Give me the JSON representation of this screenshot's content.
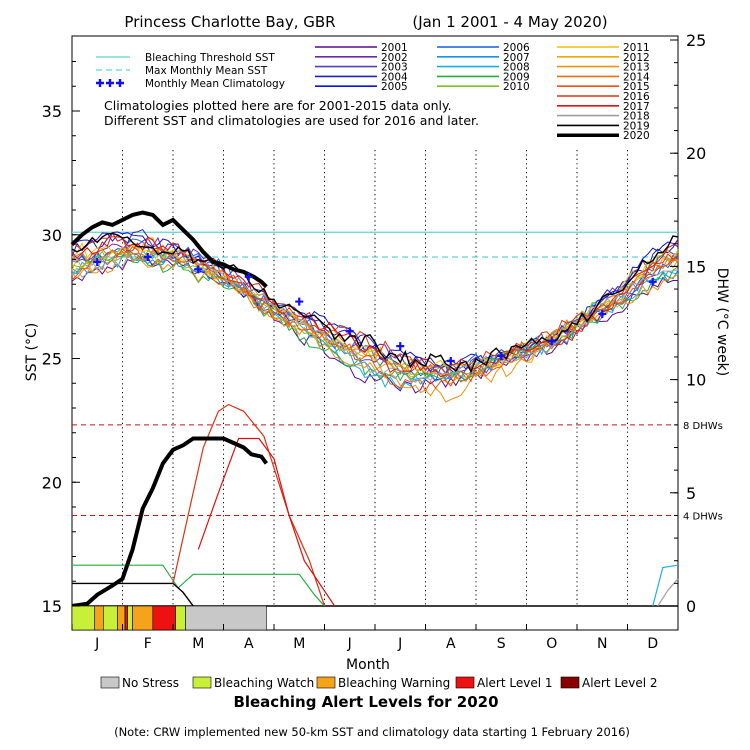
{
  "chart_data": {
    "type": "line",
    "title": "Princess Charlotte Bay, GBR",
    "title_range": "(Jan 1 2001 - 4 May 2020)",
    "xlabel": "Month",
    "ylabel": "SST (°C)",
    "ylabel_right": "DHW (°C week)",
    "categories": [
      "J",
      "F",
      "M",
      "A",
      "M",
      "J",
      "J",
      "A",
      "S",
      "O",
      "N",
      "D"
    ],
    "ylim": [
      14,
      39
    ],
    "yticks": [
      "15",
      "20",
      "25",
      "30",
      "35"
    ],
    "ylim_right": [
      0,
      25
    ],
    "yticks_right": [
      "0",
      "5",
      "10",
      "15",
      "20",
      "25"
    ],
    "grid": "dotted vertical month lines",
    "legend_placement": "top",
    "thresholds": {
      "bleaching_threshold_sst": 30.1,
      "max_monthly_mean_sst": 29.1,
      "dhw_4_label": "4 DHWs",
      "dhw_8_label": "8 DHWs"
    },
    "legend_lines": [
      {
        "name": "Bleaching Threshold SST",
        "color": "#5fd5d5",
        "style": "solid"
      },
      {
        "name": "Max Monthly Mean SST",
        "color": "#5fd5d5",
        "style": "dashed"
      },
      {
        "name": "Monthly Mean Climatology",
        "color": "#1010ff",
        "style": "plus"
      }
    ],
    "note_line1": "Climatologies plotted here are for 2001-2015 data only.",
    "note_line2": "Different SST and climatologies are used for 2016 and later.",
    "years": [
      {
        "name": "2001",
        "color": "#5a0a8a"
      },
      {
        "name": "2002",
        "color": "#6a2ab0"
      },
      {
        "name": "2003",
        "color": "#5540c0"
      },
      {
        "name": "2004",
        "color": "#2020c0"
      },
      {
        "name": "2005",
        "color": "#1010e0"
      },
      {
        "name": "2006",
        "color": "#1060e0"
      },
      {
        "name": "2007",
        "color": "#1890f0"
      },
      {
        "name": "2008",
        "color": "#18b0e0"
      },
      {
        "name": "2009",
        "color": "#20b040"
      },
      {
        "name": "2010",
        "color": "#80c020"
      },
      {
        "name": "2011",
        "color": "#f0c000"
      },
      {
        "name": "2012",
        "color": "#f0a800"
      },
      {
        "name": "2013",
        "color": "#f09010"
      },
      {
        "name": "2014",
        "color": "#f07010"
      },
      {
        "name": "2015",
        "color": "#f05010"
      },
      {
        "name": "2016",
        "color": "#e03010"
      },
      {
        "name": "2017",
        "color": "#e01010"
      },
      {
        "name": "2018",
        "color": "#a0a0a0"
      },
      {
        "name": "2019",
        "color": "#000000"
      },
      {
        "name": "2020",
        "color": "#000000"
      }
    ],
    "climatology": [
      {
        "x": 0.5,
        "y": 28.9
      },
      {
        "x": 1.5,
        "y": 29.1
      },
      {
        "x": 2.5,
        "y": 28.6
      },
      {
        "x": 3.5,
        "y": 28.3
      },
      {
        "x": 4.5,
        "y": 27.3
      },
      {
        "x": 5.5,
        "y": 26.1
      },
      {
        "x": 6.5,
        "y": 25.5
      },
      {
        "x": 7.5,
        "y": 24.9
      },
      {
        "x": 8.5,
        "y": 25.1
      },
      {
        "x": 9.5,
        "y": 25.7
      },
      {
        "x": 10.5,
        "y": 26.8
      },
      {
        "x": 11.5,
        "y": 28.1
      }
    ],
    "sst_2020": [
      {
        "x": 0.0,
        "y": 29.6
      },
      {
        "x": 0.2,
        "y": 30.0
      },
      {
        "x": 0.4,
        "y": 30.3
      },
      {
        "x": 0.6,
        "y": 30.5
      },
      {
        "x": 0.8,
        "y": 30.4
      },
      {
        "x": 1.0,
        "y": 30.6
      },
      {
        "x": 1.2,
        "y": 30.8
      },
      {
        "x": 1.4,
        "y": 30.9
      },
      {
        "x": 1.6,
        "y": 30.8
      },
      {
        "x": 1.8,
        "y": 30.4
      },
      {
        "x": 2.0,
        "y": 30.6
      },
      {
        "x": 2.2,
        "y": 30.2
      },
      {
        "x": 2.4,
        "y": 29.8
      },
      {
        "x": 2.6,
        "y": 29.3
      },
      {
        "x": 2.8,
        "y": 28.9
      },
      {
        "x": 3.0,
        "y": 28.8
      },
      {
        "x": 3.2,
        "y": 28.6
      },
      {
        "x": 3.4,
        "y": 28.5
      },
      {
        "x": 3.6,
        "y": 28.3
      },
      {
        "x": 3.75,
        "y": 28.1
      },
      {
        "x": 3.85,
        "y": 27.9
      }
    ],
    "dhw_2020": [
      {
        "x": 0.0,
        "y": 0.0
      },
      {
        "x": 0.3,
        "y": 0.1
      },
      {
        "x": 0.5,
        "y": 0.5
      },
      {
        "x": 0.8,
        "y": 0.9
      },
      {
        "x": 1.0,
        "y": 1.2
      },
      {
        "x": 1.2,
        "y": 2.5
      },
      {
        "x": 1.4,
        "y": 4.3
      },
      {
        "x": 1.6,
        "y": 5.2
      },
      {
        "x": 1.8,
        "y": 6.3
      },
      {
        "x": 2.0,
        "y": 6.9
      },
      {
        "x": 2.2,
        "y": 7.1
      },
      {
        "x": 2.4,
        "y": 7.4
      },
      {
        "x": 2.6,
        "y": 7.4
      },
      {
        "x": 2.8,
        "y": 7.4
      },
      {
        "x": 3.0,
        "y": 7.4
      },
      {
        "x": 3.2,
        "y": 7.2
      },
      {
        "x": 3.4,
        "y": 7.0
      },
      {
        "x": 3.55,
        "y": 6.7
      },
      {
        "x": 3.75,
        "y": 6.6
      },
      {
        "x": 3.85,
        "y": 6.3
      }
    ],
    "dhw_2016": [
      {
        "x": 2.0,
        "y": 1.0
      },
      {
        "x": 2.3,
        "y": 4.0
      },
      {
        "x": 2.6,
        "y": 7.0
      },
      {
        "x": 2.9,
        "y": 8.6
      },
      {
        "x": 3.1,
        "y": 8.9
      },
      {
        "x": 3.4,
        "y": 8.6
      },
      {
        "x": 3.8,
        "y": 7.5
      },
      {
        "x": 4.3,
        "y": 4.0
      },
      {
        "x": 4.7,
        "y": 2.0
      },
      {
        "x": 5.0,
        "y": 0.0
      }
    ],
    "dhw_2017": [
      {
        "x": 2.5,
        "y": 2.5
      },
      {
        "x": 2.9,
        "y": 5.0
      },
      {
        "x": 3.3,
        "y": 7.4
      },
      {
        "x": 3.7,
        "y": 7.4
      },
      {
        "x": 4.0,
        "y": 6.5
      },
      {
        "x": 4.3,
        "y": 4.0
      },
      {
        "x": 4.6,
        "y": 2.0
      },
      {
        "x": 5.2,
        "y": 0.0
      }
    ],
    "dhw_2019_other": [
      {
        "x": 0.0,
        "y": 1.0
      },
      {
        "x": 1.5,
        "y": 1.0
      },
      {
        "x": 2.0,
        "y": 1.0
      },
      {
        "x": 2.2,
        "y": 0.6
      },
      {
        "x": 2.4,
        "y": 0.0
      }
    ],
    "dhw_green": [
      {
        "x": 0.0,
        "y": 1.8
      },
      {
        "x": 1.8,
        "y": 1.8
      },
      {
        "x": 2.1,
        "y": 0.8
      },
      {
        "x": 2.4,
        "y": 1.4
      },
      {
        "x": 4.5,
        "y": 1.4
      },
      {
        "x": 4.8,
        "y": 0.5
      },
      {
        "x": 5.0,
        "y": 0.0
      }
    ],
    "dhw_cyan": [
      {
        "x": 11.5,
        "y": 0.0
      },
      {
        "x": 11.7,
        "y": 1.7
      },
      {
        "x": 12.0,
        "y": 1.8
      }
    ],
    "dhw_gray": [
      {
        "x": 11.6,
        "y": 0.0
      },
      {
        "x": 11.8,
        "y": 0.7
      },
      {
        "x": 12.0,
        "y": 1.2
      }
    ],
    "alert_bar": [
      {
        "start": 0.0,
        "end": 0.45,
        "level": "Bleaching Watch"
      },
      {
        "start": 0.45,
        "end": 0.62,
        "level": "Bleaching Warning"
      },
      {
        "start": 0.62,
        "end": 0.9,
        "level": "Bleaching Watch"
      },
      {
        "start": 0.9,
        "end": 1.05,
        "level": "Bleaching Warning"
      },
      {
        "start": 1.05,
        "end": 1.1,
        "level": "Alert Level 1"
      },
      {
        "start": 1.1,
        "end": 1.2,
        "level": "Bleaching Watch"
      },
      {
        "start": 1.2,
        "end": 1.6,
        "level": "Bleaching Warning"
      },
      {
        "start": 1.6,
        "end": 2.05,
        "level": "Alert Level 1"
      },
      {
        "start": 2.05,
        "end": 2.25,
        "level": "Bleaching Watch"
      },
      {
        "start": 2.25,
        "end": 3.85,
        "level": "No Stress"
      }
    ],
    "alert_levels": [
      {
        "name": "No Stress",
        "color": "#c8c8c8"
      },
      {
        "name": "Bleaching Watch",
        "color": "#c8f038"
      },
      {
        "name": "Bleaching Warning",
        "color": "#f5a31a"
      },
      {
        "name": "Alert Level 1",
        "color": "#ee1111"
      },
      {
        "name": "Alert Level 2",
        "color": "#8a0000"
      }
    ],
    "alert_title": "Bleaching Alert Levels for 2020",
    "footnote": "(Note: CRW implemented new 50-km SST and climatology data starting 1 February 2016)"
  }
}
